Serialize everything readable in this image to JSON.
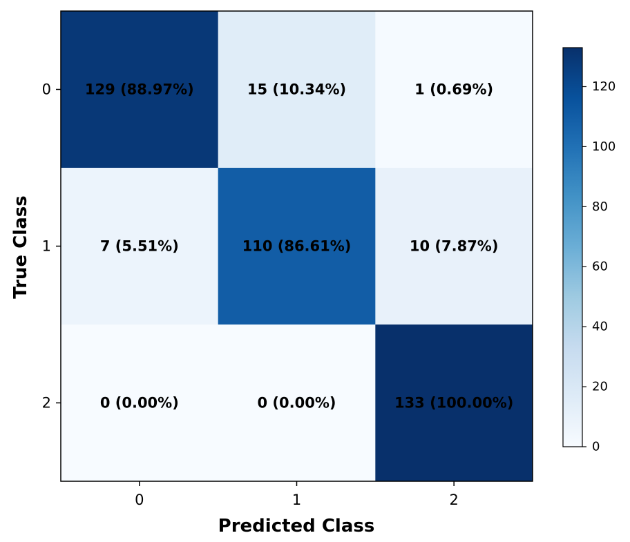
{
  "chart_data": {
    "type": "heatmap",
    "xlabel": "Predicted Class",
    "ylabel": "True Class",
    "x_categories": [
      "0",
      "1",
      "2"
    ],
    "y_categories": [
      "0",
      "1",
      "2"
    ],
    "values": [
      [
        129,
        15,
        1
      ],
      [
        7,
        110,
        10
      ],
      [
        0,
        0,
        133
      ]
    ],
    "cell_labels": [
      [
        "129 (88.97%)",
        "15 (10.34%)",
        "1 (0.69%)"
      ],
      [
        "7 (5.51%)",
        "110 (86.61%)",
        "10 (7.87%)"
      ],
      [
        "0 (0.00%)",
        "0 (0.00%)",
        "133 (100.00%)"
      ]
    ],
    "colormap": "Blues",
    "color_range": [
      0,
      133
    ],
    "colorbar_ticks": [
      0,
      20,
      40,
      60,
      80,
      100,
      120
    ],
    "colorbar_position": "right"
  }
}
